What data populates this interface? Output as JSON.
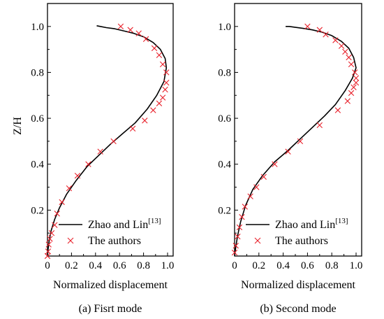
{
  "y_axis_label": "Z/H",
  "chart_data": [
    {
      "type": "line",
      "caption": "(a) Fisrt mode",
      "xlabel": "Normalized displacement",
      "ylabel": "Z/H",
      "xlim": [
        0,
        1.0
      ],
      "ylim": [
        0,
        1.1
      ],
      "xticks": [
        "0",
        "0.2",
        "0.4",
        "0.6",
        "0.8",
        "1.0"
      ],
      "yticks": [
        "0.2",
        "0.4",
        "0.6",
        "0.8",
        "1.0"
      ],
      "grid": false,
      "legend_position": "bottom-right",
      "series": [
        {
          "name": "Zhao and Lin",
          "name_superscript": "[13]",
          "style": "line",
          "color": "#000000",
          "x": [
            0.0,
            0.005,
            0.015,
            0.03,
            0.06,
            0.1,
            0.16,
            0.24,
            0.33,
            0.43,
            0.53,
            0.63,
            0.73,
            0.83,
            0.91,
            0.97,
            0.99,
            0.98,
            0.94,
            0.88,
            0.8,
            0.72,
            0.64,
            0.56,
            0.49,
            0.44,
            0.41
          ],
          "y": [
            0.0,
            0.03,
            0.07,
            0.11,
            0.16,
            0.21,
            0.27,
            0.33,
            0.39,
            0.44,
            0.49,
            0.535,
            0.58,
            0.64,
            0.7,
            0.76,
            0.82,
            0.86,
            0.9,
            0.93,
            0.955,
            0.97,
            0.98,
            0.99,
            0.995,
            1.0,
            1.003
          ]
        },
        {
          "name": "The authors",
          "style": "marker",
          "marker": "x",
          "color": "#e8202a",
          "x": [
            0.61,
            0.69,
            0.76,
            0.82,
            0.89,
            0.93,
            0.96,
            0.99,
            0.99,
            0.98,
            0.96,
            0.93,
            0.88,
            0.81,
            0.71,
            0.55,
            0.44,
            0.34,
            0.25,
            0.18,
            0.12,
            0.08,
            0.06,
            0.035,
            0.02,
            0.01,
            0.005,
            0.0
          ],
          "y": [
            1.0,
            0.985,
            0.97,
            0.945,
            0.905,
            0.875,
            0.835,
            0.8,
            0.755,
            0.725,
            0.69,
            0.665,
            0.635,
            0.59,
            0.555,
            0.5,
            0.455,
            0.4,
            0.35,
            0.295,
            0.235,
            0.185,
            0.135,
            0.1,
            0.075,
            0.05,
            0.02,
            0.0
          ]
        }
      ]
    },
    {
      "type": "line",
      "caption": "(b) Second mode",
      "xlabel": "Normalized displacement",
      "ylabel": "Z/H",
      "xlim": [
        0,
        1.0
      ],
      "ylim": [
        0,
        1.1
      ],
      "xticks": [
        "0",
        "0.2",
        "0.4",
        "0.6",
        "0.8",
        "1.0"
      ],
      "yticks": [
        "0.2",
        "0.4",
        "0.6",
        "0.8",
        "1.0"
      ],
      "grid": false,
      "legend_position": "bottom-right",
      "series": [
        {
          "name": "Zhao and Lin",
          "name_superscript": "[13]",
          "style": "line",
          "color": "#000000",
          "x": [
            0.0,
            0.01,
            0.025,
            0.05,
            0.09,
            0.15,
            0.23,
            0.33,
            0.44,
            0.54,
            0.64,
            0.74,
            0.83,
            0.91,
            0.97,
            1.0,
            0.98,
            0.94,
            0.88,
            0.8,
            0.72,
            0.64,
            0.56,
            0.49,
            0.45,
            0.42
          ],
          "y": [
            0.0,
            0.04,
            0.09,
            0.15,
            0.22,
            0.29,
            0.35,
            0.41,
            0.46,
            0.51,
            0.56,
            0.61,
            0.66,
            0.72,
            0.775,
            0.82,
            0.865,
            0.905,
            0.935,
            0.96,
            0.975,
            0.985,
            0.992,
            0.997,
            1.0,
            1.0
          ]
        },
        {
          "name": "The authors",
          "style": "marker",
          "marker": "x",
          "color": "#e8202a",
          "x": [
            0.6,
            0.7,
            0.75,
            0.83,
            0.88,
            0.91,
            0.94,
            0.96,
            0.99,
            1.0,
            1.0,
            0.98,
            0.96,
            0.93,
            0.85,
            0.7,
            0.54,
            0.44,
            0.33,
            0.24,
            0.18,
            0.13,
            0.085,
            0.06,
            0.04,
            0.025,
            0.01,
            0.0
          ],
          "y": [
            1.0,
            0.985,
            0.965,
            0.94,
            0.915,
            0.89,
            0.865,
            0.835,
            0.8,
            0.775,
            0.755,
            0.735,
            0.71,
            0.675,
            0.635,
            0.57,
            0.5,
            0.455,
            0.4,
            0.345,
            0.3,
            0.26,
            0.215,
            0.17,
            0.125,
            0.085,
            0.045,
            0.015
          ]
        }
      ]
    }
  ]
}
